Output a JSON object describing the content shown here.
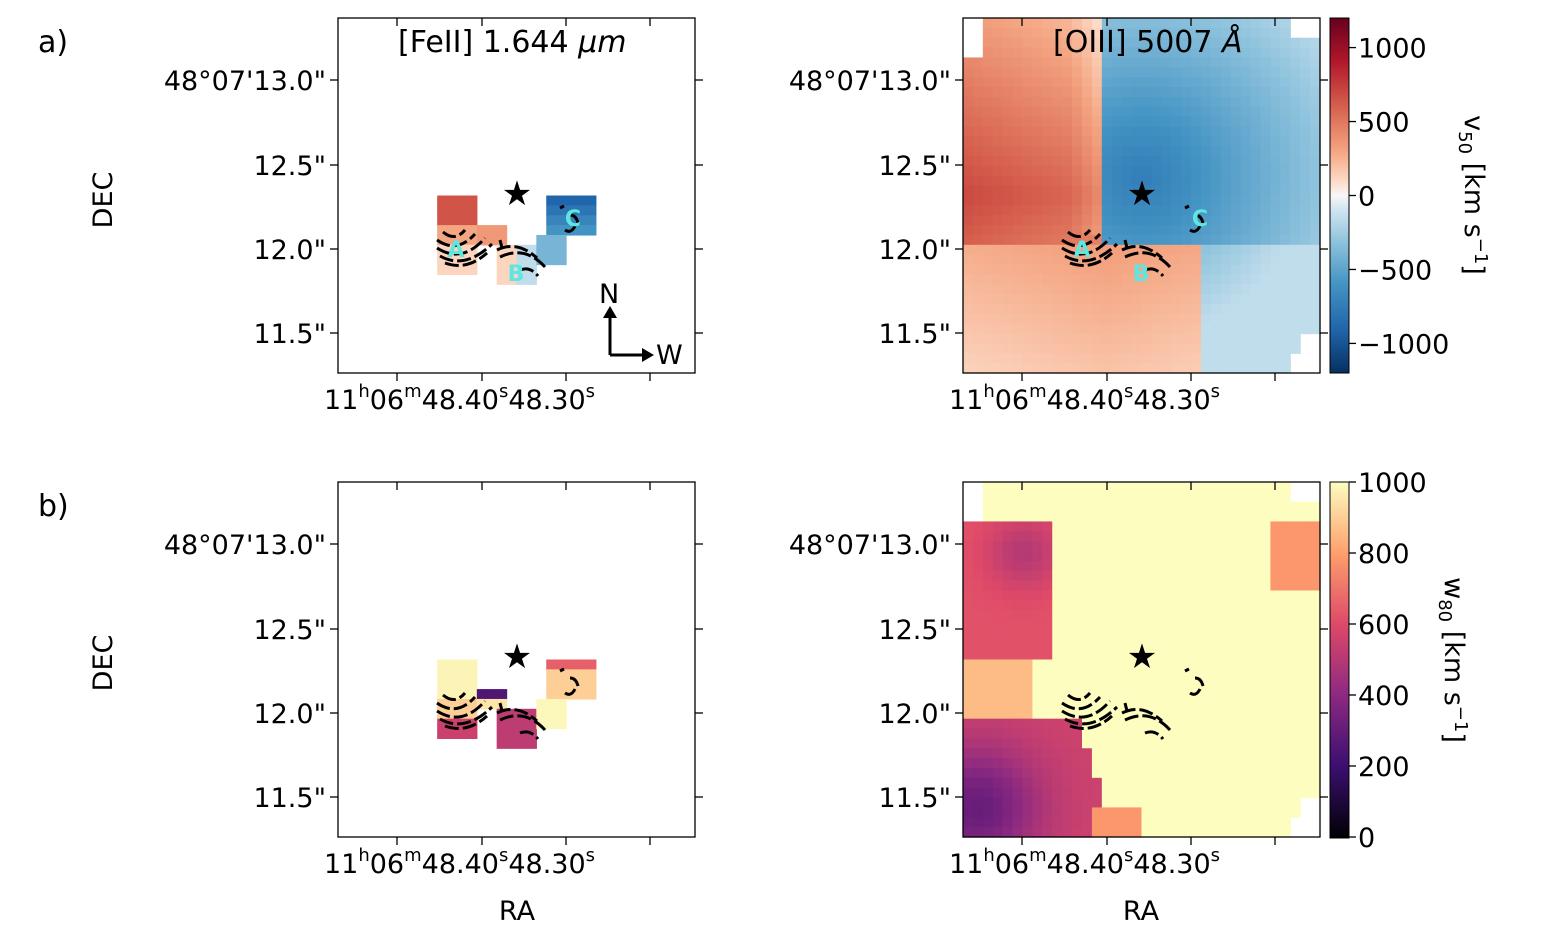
{
  "chart_data": {
    "type": "heatmap",
    "panel_labels": [
      "a)",
      "b)"
    ],
    "xlabel": "RA",
    "ylabel": "DEC",
    "x_ticks": {
      "first": {
        "h": "11",
        "hs": "h",
        "m": "06",
        "ms": "m",
        "s": "48.40",
        "ss": "s"
      },
      "second": {
        "s": "48.30",
        "ss": "s"
      }
    },
    "y_ticks": [
      "48°07'13.0\"",
      "12.5\"",
      "12.0\"",
      "11.5\""
    ],
    "annotations": {
      "A": "A",
      "B": "B",
      "C": "C",
      "star": "★",
      "north": "N",
      "west": "W"
    },
    "panels": [
      {
        "row": "a",
        "column": "left",
        "title_main": "[FeII] 1.644 ",
        "title_unit": "μm",
        "quantity": "v50"
      },
      {
        "row": "a",
        "column": "right",
        "title_main": "[OIII] 5007 ",
        "title_unit": "Å",
        "quantity": "v50"
      },
      {
        "row": "b",
        "column": "left",
        "title_main": "",
        "title_unit": "",
        "quantity": "w80"
      },
      {
        "row": "b",
        "column": "right",
        "title_main": "",
        "title_unit": "",
        "quantity": "w80"
      }
    ],
    "colorbars": [
      {
        "label_main": "v",
        "label_sub": "50",
        "label_unit": " [km s",
        "label_exp": "−1",
        "label_close": "]",
        "cmap": "RdBu_r",
        "range": [
          -1200,
          1200
        ],
        "ticks": [
          "1000",
          "500",
          "0",
          "−500",
          "−1000"
        ],
        "tick_values": [
          1000,
          500,
          0,
          -500,
          -1000
        ]
      },
      {
        "label_main": "w",
        "label_sub": "80",
        "label_unit": " [km s",
        "label_exp": "−1",
        "label_close": "]",
        "cmap": "magma",
        "range": [
          0,
          1000
        ],
        "ticks": [
          "1000",
          "800",
          "600",
          "400",
          "200",
          "0"
        ],
        "tick_values": [
          1000,
          800,
          600,
          400,
          200,
          0
        ]
      }
    ]
  }
}
